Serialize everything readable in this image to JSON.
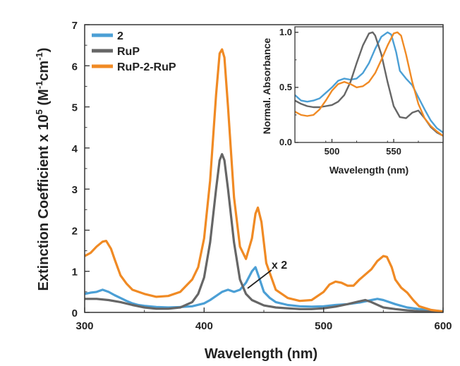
{
  "chart_data": [
    {
      "type": "line",
      "xlabel": "Wavelength (nm)",
      "ylabel_parts": [
        "Extinction Coefficient x 10",
        "5",
        " (M",
        "-1",
        "cm",
        "-1",
        ")"
      ],
      "xlim": [
        300,
        600
      ],
      "ylim": [
        0,
        7
      ],
      "xticks": [
        "300",
        "400",
        "500",
        "600"
      ],
      "yticks": [
        "0",
        "1",
        "2",
        "3",
        "4",
        "5",
        "6",
        "7"
      ],
      "legend": "top-left",
      "annotation": {
        "text": "x 2",
        "x": 460,
        "y": 1.1
      },
      "series": [
        {
          "name": "2",
          "color": "#4b9fd5",
          "x": [
            300,
            305,
            310,
            315,
            320,
            325,
            330,
            335,
            340,
            345,
            350,
            360,
            370,
            380,
            390,
            400,
            405,
            410,
            415,
            420,
            425,
            430,
            435,
            440,
            443,
            446,
            450,
            455,
            460,
            470,
            480,
            490,
            500,
            510,
            520,
            530,
            540,
            545,
            550,
            560,
            570,
            580,
            590,
            600
          ],
          "y": [
            0.45,
            0.48,
            0.5,
            0.55,
            0.5,
            0.42,
            0.35,
            0.28,
            0.22,
            0.18,
            0.16,
            0.13,
            0.12,
            0.13,
            0.15,
            0.22,
            0.3,
            0.4,
            0.5,
            0.55,
            0.5,
            0.55,
            0.72,
            1.0,
            1.1,
            0.85,
            0.5,
            0.35,
            0.25,
            0.18,
            0.15,
            0.14,
            0.15,
            0.18,
            0.2,
            0.24,
            0.3,
            0.33,
            0.3,
            0.2,
            0.12,
            0.08,
            0.05,
            0.03
          ]
        },
        {
          "name": "RuP",
          "color": "#666666",
          "x": [
            300,
            310,
            320,
            330,
            340,
            350,
            360,
            370,
            380,
            390,
            395,
            400,
            405,
            410,
            413,
            415,
            417,
            420,
            425,
            430,
            435,
            440,
            450,
            460,
            470,
            480,
            490,
            500,
            510,
            520,
            530,
            535,
            540,
            550,
            560,
            570,
            580,
            590,
            600
          ],
          "y": [
            0.33,
            0.33,
            0.3,
            0.25,
            0.18,
            0.12,
            0.09,
            0.09,
            0.12,
            0.25,
            0.45,
            0.85,
            1.7,
            3.0,
            3.7,
            3.85,
            3.7,
            3.0,
            1.7,
            0.8,
            0.45,
            0.3,
            0.17,
            0.12,
            0.1,
            0.08,
            0.08,
            0.1,
            0.14,
            0.2,
            0.27,
            0.3,
            0.25,
            0.12,
            0.08,
            0.05,
            0.03,
            0.02,
            0.01
          ]
        },
        {
          "name": "RuP-2-RuP",
          "color": "#f08a24",
          "x": [
            300,
            305,
            310,
            315,
            318,
            322,
            325,
            330,
            335,
            340,
            350,
            360,
            370,
            380,
            390,
            395,
            400,
            405,
            410,
            413,
            415,
            417,
            420,
            425,
            430,
            435,
            440,
            443,
            445,
            448,
            452,
            460,
            470,
            480,
            490,
            500,
            505,
            510,
            515,
            520,
            525,
            530,
            540,
            545,
            550,
            553,
            557,
            560,
            565,
            570,
            575,
            580,
            590,
            600
          ],
          "y": [
            1.37,
            1.45,
            1.6,
            1.72,
            1.74,
            1.55,
            1.3,
            0.9,
            0.7,
            0.55,
            0.45,
            0.38,
            0.4,
            0.5,
            0.8,
            1.1,
            1.8,
            3.2,
            5.3,
            6.3,
            6.4,
            6.2,
            5.0,
            2.8,
            1.6,
            1.3,
            1.8,
            2.4,
            2.55,
            2.2,
            1.2,
            0.55,
            0.35,
            0.28,
            0.3,
            0.5,
            0.68,
            0.75,
            0.72,
            0.65,
            0.65,
            0.8,
            1.05,
            1.25,
            1.37,
            1.35,
            1.1,
            0.8,
            0.6,
            0.48,
            0.3,
            0.15,
            0.06,
            0.02
          ]
        }
      ]
    },
    {
      "type": "line",
      "xlabel": "Wavelength (nm)",
      "ylabel": "Normal. Absorbance",
      "xlim": [
        470,
        590
      ],
      "ylim": [
        0,
        1.05
      ],
      "xticks": [
        "500",
        "550"
      ],
      "yticks": [
        "0.0",
        "0.5",
        "1.0"
      ],
      "series": [
        {
          "name": "2",
          "color": "#4b9fd5",
          "x": [
            470,
            475,
            480,
            485,
            490,
            495,
            500,
            505,
            510,
            515,
            520,
            525,
            530,
            535,
            540,
            545,
            548,
            552,
            555,
            560,
            565,
            570,
            575,
            580,
            585,
            590
          ],
          "y": [
            0.43,
            0.38,
            0.37,
            0.38,
            0.4,
            0.45,
            0.5,
            0.56,
            0.58,
            0.57,
            0.58,
            0.63,
            0.72,
            0.85,
            0.96,
            1.0,
            0.98,
            0.82,
            0.65,
            0.58,
            0.52,
            0.41,
            0.3,
            0.2,
            0.13,
            0.09
          ]
        },
        {
          "name": "RuP",
          "color": "#666666",
          "x": [
            470,
            475,
            480,
            485,
            490,
            495,
            500,
            505,
            510,
            515,
            520,
            525,
            530,
            533,
            535,
            540,
            545,
            550,
            555,
            560,
            565,
            570,
            575,
            580,
            585,
            590
          ],
          "y": [
            0.38,
            0.35,
            0.33,
            0.32,
            0.32,
            0.33,
            0.34,
            0.37,
            0.43,
            0.55,
            0.72,
            0.88,
            0.99,
            1.0,
            0.97,
            0.8,
            0.55,
            0.33,
            0.23,
            0.22,
            0.27,
            0.29,
            0.22,
            0.14,
            0.09,
            0.06
          ]
        },
        {
          "name": "RuP-2-RuP",
          "color": "#f08a24",
          "x": [
            470,
            475,
            480,
            485,
            490,
            495,
            500,
            505,
            510,
            515,
            520,
            525,
            530,
            535,
            540,
            545,
            550,
            553,
            556,
            560,
            565,
            570,
            575,
            580,
            585,
            590
          ],
          "y": [
            0.28,
            0.25,
            0.24,
            0.25,
            0.3,
            0.38,
            0.47,
            0.53,
            0.55,
            0.53,
            0.5,
            0.51,
            0.55,
            0.63,
            0.75,
            0.88,
            0.99,
            1.0,
            0.97,
            0.8,
            0.55,
            0.35,
            0.22,
            0.15,
            0.1,
            0.06
          ]
        }
      ]
    }
  ]
}
